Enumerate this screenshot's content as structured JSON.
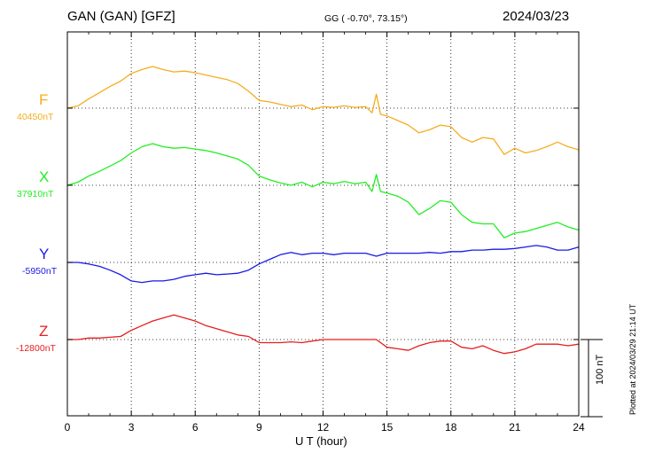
{
  "header": {
    "station": "GAN (GAN)  [GFZ]",
    "coords": "GG ( -0.70°,  73.15°)",
    "date": "2024/03/23"
  },
  "chart_data": {
    "type": "line",
    "xlabel": "U T (hour)",
    "xlim": [
      0,
      24
    ],
    "xticks": [
      "0",
      "3",
      "6",
      "9",
      "12",
      "15",
      "18",
      "21",
      "24"
    ],
    "grid": true,
    "scale_bar_label": "100 nT",
    "plotted_note": "Plotted at 2024/03/29 21:14 UT",
    "series": [
      {
        "name": "F",
        "baseline_label": "40450nT",
        "color": "#f5ad1e",
        "x": [
          0,
          0.5,
          1,
          1.5,
          2,
          2.5,
          3,
          3.5,
          4,
          4.5,
          5,
          5.5,
          6,
          6.5,
          7,
          7.5,
          8,
          8.5,
          9,
          9.5,
          10,
          10.5,
          11,
          11.5,
          12,
          12.5,
          13,
          13.5,
          14,
          14.3,
          14.5,
          14.7,
          15,
          15.5,
          16,
          16.5,
          17,
          17.5,
          18,
          18.5,
          19,
          19.5,
          20,
          20.5,
          21,
          21.5,
          22,
          22.5,
          23,
          23.5,
          24
        ],
        "values": [
          0,
          3,
          12,
          20,
          28,
          35,
          45,
          50,
          54,
          50,
          47,
          48,
          46,
          43,
          40,
          37,
          32,
          22,
          10,
          8,
          5,
          2,
          4,
          -2,
          2,
          1,
          3,
          1,
          2,
          -6,
          18,
          -8,
          -10,
          -16,
          -22,
          -32,
          -28,
          -22,
          -24,
          -38,
          -44,
          -38,
          -40,
          -60,
          -52,
          -58,
          -55,
          -50,
          -44,
          -50,
          -54
        ]
      },
      {
        "name": "X",
        "baseline_label": "37910nT",
        "color": "#22ee22",
        "x": [
          0,
          0.5,
          1,
          1.5,
          2,
          2.5,
          3,
          3.5,
          4,
          4.5,
          5,
          5.5,
          6,
          6.5,
          7,
          7.5,
          8,
          8.5,
          9,
          9.5,
          10,
          10.5,
          11,
          11.5,
          12,
          12.5,
          13,
          13.5,
          14,
          14.3,
          14.5,
          14.7,
          15,
          15.5,
          16,
          16.5,
          17,
          17.5,
          18,
          18.5,
          19,
          19.5,
          20,
          20.5,
          21,
          21.5,
          22,
          22.5,
          23,
          23.5,
          24
        ],
        "values": [
          0,
          4,
          12,
          18,
          25,
          32,
          42,
          50,
          54,
          50,
          48,
          49,
          47,
          45,
          42,
          38,
          34,
          26,
          12,
          7,
          3,
          0,
          4,
          -2,
          4,
          2,
          5,
          2,
          4,
          -8,
          14,
          -8,
          -10,
          -14,
          -22,
          -38,
          -30,
          -20,
          -22,
          -38,
          -48,
          -50,
          -50,
          -68,
          -62,
          -60,
          -56,
          -52,
          -48,
          -54,
          -58
        ]
      },
      {
        "name": "Y",
        "baseline_label": "-5950nT",
        "color": "#1a1ae6",
        "x": [
          0,
          0.5,
          1,
          1.5,
          2,
          2.5,
          3,
          3.5,
          4,
          4.5,
          5,
          5.5,
          6,
          6.5,
          7,
          7.5,
          8,
          8.5,
          9,
          9.5,
          10,
          10.5,
          11,
          11.5,
          12,
          12.5,
          13,
          13.5,
          14,
          14.5,
          15,
          15.5,
          16,
          16.5,
          17,
          17.5,
          18,
          18.5,
          19,
          19.5,
          20,
          20.5,
          21,
          21.5,
          22,
          22.5,
          23,
          23.5,
          24
        ],
        "values": [
          0,
          0,
          -2,
          -5,
          -10,
          -16,
          -24,
          -26,
          -24,
          -24,
          -22,
          -18,
          -16,
          -14,
          -16,
          -15,
          -14,
          -10,
          -2,
          4,
          10,
          13,
          10,
          12,
          12,
          10,
          12,
          12,
          12,
          8,
          12,
          12,
          12,
          12,
          13,
          12,
          14,
          14,
          16,
          16,
          17,
          17,
          18,
          20,
          22,
          20,
          16,
          16,
          20
        ]
      },
      {
        "name": "Z",
        "baseline_label": "-12800nT",
        "color": "#e61e1e",
        "x": [
          0,
          0.5,
          1,
          1.5,
          2,
          2.5,
          3,
          3.5,
          4,
          4.5,
          5,
          5.5,
          6,
          6.5,
          7,
          7.5,
          8,
          8.5,
          9,
          9.5,
          10,
          10.5,
          11,
          11.5,
          12,
          12.5,
          13,
          13.5,
          14,
          14.5,
          15,
          15.5,
          16,
          16.5,
          17,
          17.5,
          18,
          18.5,
          19,
          19.5,
          20,
          20.5,
          21,
          21.5,
          22,
          22.5,
          23,
          23.5,
          24
        ],
        "values": [
          0,
          0,
          2,
          2,
          3,
          4,
          12,
          18,
          24,
          28,
          32,
          28,
          24,
          18,
          14,
          10,
          6,
          4,
          -4,
          -4,
          -4,
          -3,
          -4,
          -2,
          0,
          0,
          0,
          0,
          0,
          0,
          -10,
          -12,
          -14,
          -8,
          -4,
          -2,
          -2,
          -10,
          -12,
          -8,
          -14,
          -18,
          -16,
          -12,
          -6,
          -6,
          -6,
          -8,
          -6
        ]
      }
    ]
  }
}
